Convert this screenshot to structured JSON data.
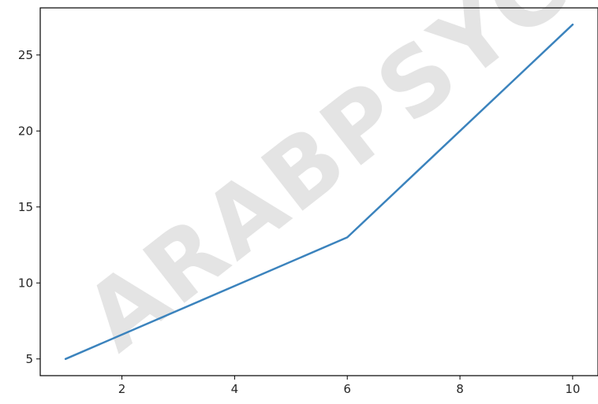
{
  "watermark": "ARABPSYC",
  "chart_data": {
    "type": "line",
    "title": "",
    "xlabel": "",
    "ylabel": "",
    "x": [
      1,
      6,
      10
    ],
    "series": [
      {
        "values": [
          5,
          13,
          27
        ],
        "color": "#3b83bd"
      }
    ],
    "xlim": [
      0.55,
      10.45
    ],
    "ylim": [
      3.9,
      28.1
    ],
    "xticks": [
      2,
      4,
      6,
      8,
      10
    ],
    "yticks": [
      5,
      10,
      15,
      20,
      25
    ],
    "grid": false,
    "legend": "none"
  }
}
